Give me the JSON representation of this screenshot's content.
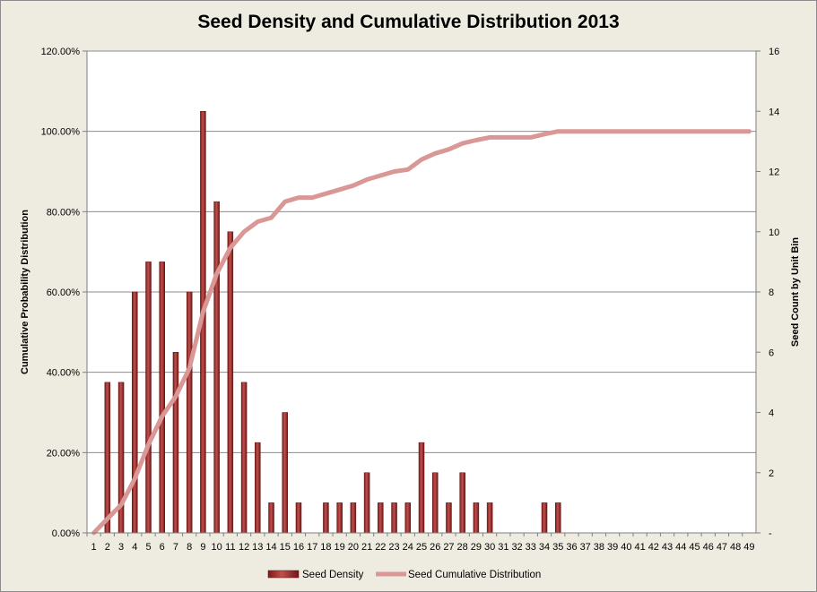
{
  "chart_data": {
    "type": "bar",
    "title": "Seed Density and Cumulative Distribution 2013",
    "ylabel_left": "Cumulative Probability Distribution",
    "ylabel_right": "Seed Count by Unit Bin",
    "xlabel": "",
    "left_axis": {
      "ylim": [
        0,
        1.2
      ],
      "ticks": [
        "0.00%",
        "20.00%",
        "40.00%",
        "60.00%",
        "80.00%",
        "100.00%",
        "120.00%"
      ]
    },
    "right_axis": {
      "ylim": [
        0,
        16
      ],
      "ticks": [
        "-",
        "2",
        "4",
        "6",
        "8",
        "10",
        "12",
        "14",
        "16"
      ]
    },
    "categories": [
      "1",
      "2",
      "3",
      "4",
      "5",
      "6",
      "7",
      "8",
      "9",
      "10",
      "11",
      "12",
      "13",
      "14",
      "15",
      "16",
      "17",
      "18",
      "19",
      "20",
      "21",
      "22",
      "23",
      "24",
      "25",
      "26",
      "27",
      "28",
      "29",
      "30",
      "31",
      "32",
      "33",
      "34",
      "35",
      "36",
      "37",
      "38",
      "39",
      "40",
      "41",
      "42",
      "43",
      "44",
      "45",
      "46",
      "47",
      "48",
      "49"
    ],
    "grid": true,
    "legend_position": "bottom",
    "series": [
      {
        "name": "Seed Density",
        "type": "bar",
        "axis": "right",
        "color": "#a52a2a",
        "values": [
          0,
          5,
          5,
          8,
          9,
          9,
          6,
          8,
          14,
          11,
          10,
          5,
          3,
          1,
          4,
          1,
          0,
          1,
          1,
          1,
          2,
          1,
          1,
          1,
          3,
          2,
          1,
          2,
          1,
          1,
          0,
          0,
          0,
          1,
          1,
          0,
          0,
          0,
          0,
          0,
          0,
          0,
          0,
          0,
          0,
          0,
          0,
          0,
          0
        ]
      },
      {
        "name": "Seed Cumulative Distribution",
        "type": "line",
        "axis": "left",
        "color": "#d99795",
        "values": [
          0,
          0.035,
          0.07,
          0.135,
          0.22,
          0.29,
          0.34,
          0.41,
          0.55,
          0.645,
          0.71,
          0.75,
          0.775,
          0.785,
          0.825,
          0.835,
          0.835,
          0.845,
          0.855,
          0.865,
          0.88,
          0.89,
          0.9,
          0.905,
          0.93,
          0.945,
          0.955,
          0.97,
          0.978,
          0.985,
          0.985,
          0.985,
          0.985,
          0.993,
          1.0,
          1.0,
          1.0,
          1.0,
          1.0,
          1.0,
          1.0,
          1.0,
          1.0,
          1.0,
          1.0,
          1.0,
          1.0,
          1.0,
          1.0
        ]
      }
    ]
  }
}
